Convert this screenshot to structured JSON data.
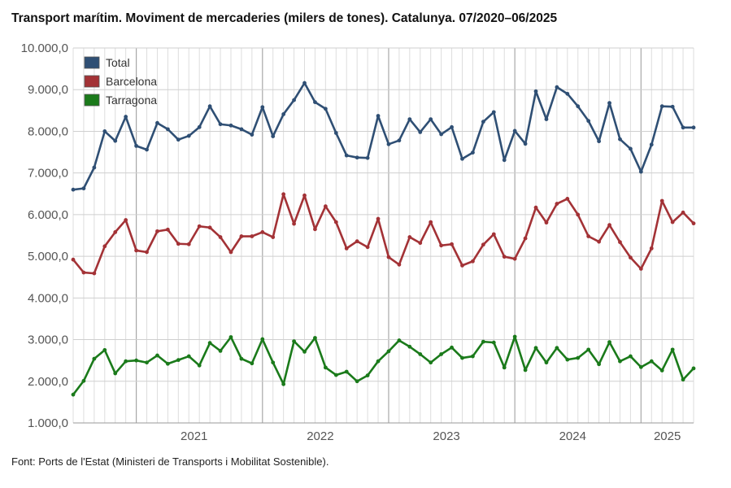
{
  "title": "Transport marítim. Moviment de mercaderies (milers de tones). Catalunya. 07/2020–06/2025",
  "source": "Font: Ports de l'Estat (Ministeri de Transports i Mobilitat Sostenible).",
  "chart_data": {
    "type": "line",
    "title": "Transport marítim. Moviment de mercaderies (milers de tones). Catalunya. 07/2020–06/2025",
    "xlabel": "",
    "ylabel": "",
    "ylim": [
      1000,
      10000
    ],
    "y_ticks": [
      "1.000,0",
      "2.000,0",
      "3.000,0",
      "4.000,0",
      "5.000,0",
      "6.000,0",
      "7.000,0",
      "8.000,0",
      "9.000,0",
      "10.000,0"
    ],
    "x_tick_labels": [
      "2021",
      "2022",
      "2023",
      "2024",
      "2025"
    ],
    "grid": true,
    "legend_position": "top-left",
    "x": [
      "2020-07",
      "2020-08",
      "2020-09",
      "2020-10",
      "2020-11",
      "2020-12",
      "2021-01",
      "2021-02",
      "2021-03",
      "2021-04",
      "2021-05",
      "2021-06",
      "2021-07",
      "2021-08",
      "2021-09",
      "2021-10",
      "2021-11",
      "2021-12",
      "2022-01",
      "2022-02",
      "2022-03",
      "2022-04",
      "2022-05",
      "2022-06",
      "2022-07",
      "2022-08",
      "2022-09",
      "2022-10",
      "2022-11",
      "2022-12",
      "2023-01",
      "2023-02",
      "2023-03",
      "2023-04",
      "2023-05",
      "2023-06",
      "2023-07",
      "2023-08",
      "2023-09",
      "2023-10",
      "2023-11",
      "2023-12",
      "2024-01",
      "2024-02",
      "2024-03",
      "2024-04",
      "2024-05",
      "2024-06",
      "2024-07",
      "2024-08",
      "2024-09",
      "2024-10",
      "2024-11",
      "2024-12",
      "2025-01",
      "2025-02",
      "2025-03",
      "2025-04",
      "2025-05",
      "2025-06"
    ],
    "series": [
      {
        "name": "Total",
        "color": "#2f4f74",
        "values": [
          6600,
          6630,
          7130,
          8000,
          7770,
          8350,
          7650,
          7560,
          8200,
          8050,
          7800,
          7890,
          8100,
          8600,
          8170,
          8140,
          8050,
          7920,
          8580,
          7880,
          8410,
          8750,
          9160,
          8700,
          8540,
          7960,
          7420,
          7370,
          7360,
          8370,
          7690,
          7780,
          8290,
          7980,
          8290,
          7930,
          8100,
          7340,
          7490,
          8230,
          8460,
          7310,
          8010,
          7700,
          8960,
          8290,
          9060,
          8900,
          8600,
          8250,
          7760,
          8680,
          7810,
          7580,
          7030,
          7680,
          8600,
          8590,
          8090,
          8090
        ]
      },
      {
        "name": "Barcelona",
        "color": "#a33236",
        "values": [
          4920,
          4610,
          4590,
          5240,
          5580,
          5870,
          5140,
          5100,
          5600,
          5640,
          5300,
          5290,
          5720,
          5690,
          5460,
          5100,
          5480,
          5480,
          5580,
          5460,
          6490,
          5780,
          6460,
          5650,
          6200,
          5820,
          5190,
          5360,
          5220,
          5900,
          4980,
          4800,
          5460,
          5320,
          5820,
          5260,
          5290,
          4780,
          4880,
          5280,
          5530,
          4990,
          4940,
          5430,
          6170,
          5810,
          6260,
          6380,
          6000,
          5480,
          5350,
          5750,
          5340,
          4970,
          4700,
          5190,
          6330,
          5820,
          6050,
          5790
        ]
      },
      {
        "name": "Tarragona",
        "color": "#1a7a1a",
        "values": [
          1680,
          2010,
          2540,
          2750,
          2190,
          2480,
          2500,
          2450,
          2620,
          2420,
          2510,
          2600,
          2380,
          2920,
          2730,
          3060,
          2540,
          2430,
          3010,
          2450,
          1930,
          2960,
          2710,
          3040,
          2330,
          2150,
          2230,
          2000,
          2140,
          2480,
          2720,
          2980,
          2830,
          2650,
          2450,
          2650,
          2810,
          2560,
          2600,
          2950,
          2930,
          2330,
          3070,
          2270,
          2800,
          2450,
          2800,
          2520,
          2560,
          2760,
          2410,
          2940,
          2480,
          2600,
          2340,
          2480,
          2260,
          2760,
          2040,
          2310
        ]
      }
    ]
  }
}
